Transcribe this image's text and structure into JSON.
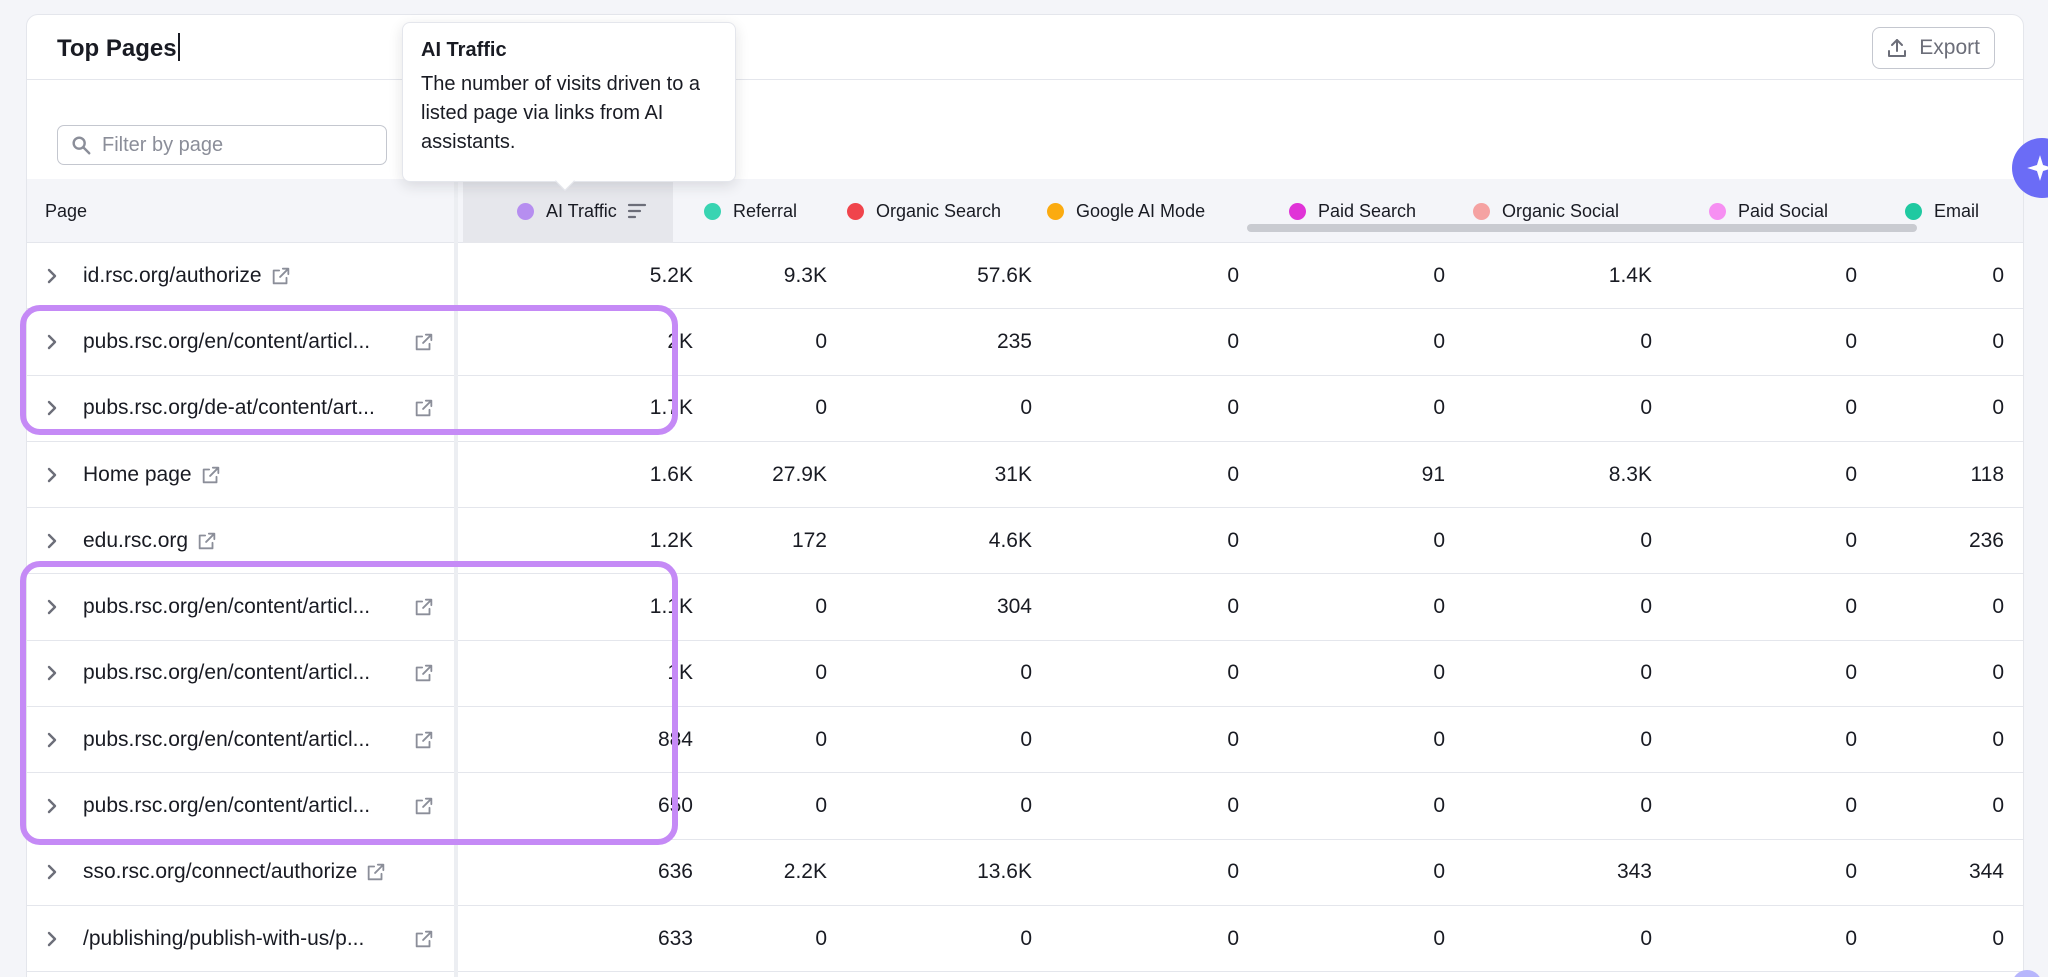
{
  "card": {
    "title": "Top Pages",
    "export_label": "Export",
    "filter_placeholder": "Filter by page"
  },
  "tooltip": {
    "title": "AI Traffic",
    "body": "The number of visits driven to a listed page via links from AI assistants."
  },
  "columns": [
    {
      "label": "Page"
    },
    {
      "label": "AI Traffic",
      "color": "#b68ef0"
    },
    {
      "label": "Referral",
      "color": "#38d4b2"
    },
    {
      "label": "Organic Search",
      "color": "#f0444c"
    },
    {
      "label": "Google AI Mode",
      "color": "#fbab10"
    },
    {
      "label": "Paid Search",
      "color": "#e033d7"
    },
    {
      "label": "Organic Social",
      "color": "#f5a2a2"
    },
    {
      "label": "Paid Social",
      "color": "#f68ff2"
    },
    {
      "label": "Email",
      "color": "#1fc9a1"
    }
  ],
  "rows": [
    {
      "page": "id.rsc.org/authorize",
      "v": [
        "5.2K",
        "9.3K",
        "57.6K",
        "0",
        "0",
        "1.4K",
        "0",
        "0"
      ]
    },
    {
      "page": "pubs.rsc.org/en/content/articl...",
      "v": [
        "2K",
        "0",
        "235",
        "0",
        "0",
        "0",
        "0",
        "0"
      ]
    },
    {
      "page": "pubs.rsc.org/de-at/content/art...",
      "v": [
        "1.7K",
        "0",
        "0",
        "0",
        "0",
        "0",
        "0",
        "0"
      ]
    },
    {
      "page": "Home page",
      "v": [
        "1.6K",
        "27.9K",
        "31K",
        "0",
        "91",
        "8.3K",
        "0",
        "118"
      ]
    },
    {
      "page": "edu.rsc.org",
      "v": [
        "1.2K",
        "172",
        "4.6K",
        "0",
        "0",
        "0",
        "0",
        "236"
      ]
    },
    {
      "page": "pubs.rsc.org/en/content/articl...",
      "v": [
        "1.1K",
        "0",
        "304",
        "0",
        "0",
        "0",
        "0",
        "0"
      ]
    },
    {
      "page": "pubs.rsc.org/en/content/articl...",
      "v": [
        "1K",
        "0",
        "0",
        "0",
        "0",
        "0",
        "0",
        "0"
      ]
    },
    {
      "page": "pubs.rsc.org/en/content/articl...",
      "v": [
        "884",
        "0",
        "0",
        "0",
        "0",
        "0",
        "0",
        "0"
      ]
    },
    {
      "page": "pubs.rsc.org/en/content/articl...",
      "v": [
        "650",
        "0",
        "0",
        "0",
        "0",
        "0",
        "0",
        "0"
      ]
    },
    {
      "page": "sso.rsc.org/connect/authorize",
      "v": [
        "636",
        "2.2K",
        "13.6K",
        "0",
        "0",
        "343",
        "0",
        "344"
      ]
    },
    {
      "page": "/publishing/publish-with-us/p...",
      "v": [
        "633",
        "0",
        "0",
        "0",
        "0",
        "0",
        "0",
        "0"
      ]
    }
  ]
}
